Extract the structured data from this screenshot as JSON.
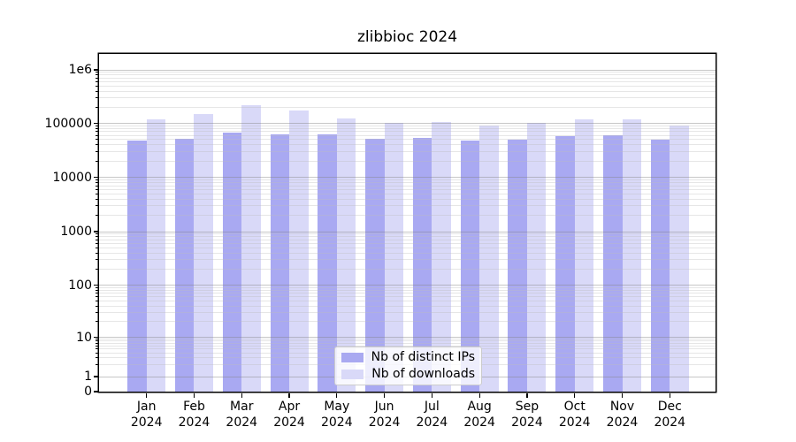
{
  "title": "zlibbioc 2024",
  "colors": {
    "bar_distinct_ips": "rgba(132,132,236,0.7)",
    "bar_downloads": "rgba(201,201,245,0.7)",
    "legend_swatch_distinct_ips": "#a9a9f1",
    "legend_swatch_downloads": "#d9d9f8",
    "grid_major": "rgba(130,130,130,0.45)",
    "grid_minor": "rgba(190,190,190,0.38)",
    "axis": "#000000"
  },
  "legend": {
    "position": "lower center",
    "items": [
      {
        "label": "Nb of distinct IPs",
        "color_key": "legend_swatch_distinct_ips"
      },
      {
        "label": "Nb of downloads",
        "color_key": "legend_swatch_downloads"
      }
    ]
  },
  "y_axis": {
    "tick_labels": [
      "1e6",
      "100000",
      "10000",
      "1000",
      "100",
      "10",
      "1",
      "0"
    ],
    "tick_values": [
      1000000,
      100000,
      10000,
      1000,
      100,
      10,
      1,
      0
    ]
  },
  "chart_data": {
    "type": "bar",
    "title": "zlibbioc 2024",
    "categories": [
      "Jan 2024",
      "Feb 2024",
      "Mar 2024",
      "Apr 2024",
      "May 2024",
      "Jun 2024",
      "Jul 2024",
      "Aug 2024",
      "Sep 2024",
      "Oct 2024",
      "Nov 2024",
      "Dec 2024"
    ],
    "series": [
      {
        "name": "Nb of distinct IPs",
        "values": [
          48800,
          51800,
          67000,
          63500,
          63000,
          52000,
          54700,
          48800,
          50500,
          59000,
          61200,
          49700
        ]
      },
      {
        "name": "Nb of downloads",
        "values": [
          120000,
          148000,
          215000,
          176000,
          125000,
          103000,
          107000,
          90500,
          100500,
          119000,
          119500,
          90500
        ]
      }
    ],
    "yscale": "log (symlog, linear below 1, 0 shown at axis base)",
    "ylim": [
      0,
      2000000
    ],
    "xlabel": "",
    "ylabel": "",
    "grid": "major and minor horizontal gridlines",
    "legend_position": "lower center"
  }
}
